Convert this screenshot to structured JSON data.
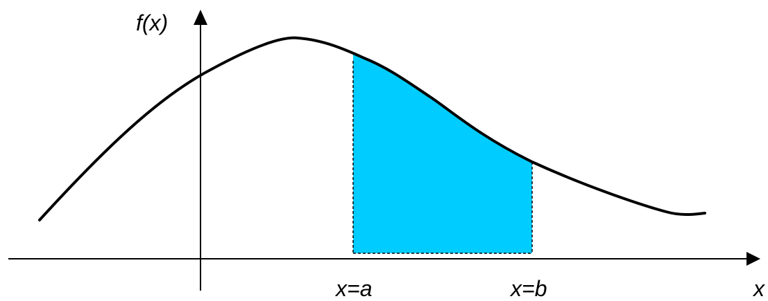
{
  "labels": {
    "y_axis": "f(x)",
    "x_axis": "x",
    "lower_bound": "x=a",
    "upper_bound": "x=b"
  },
  "colors": {
    "background": "#ffffff",
    "curve": "#000000",
    "axes": "#000000",
    "shaded_region": "#00ccff",
    "bound_lines": "#000000"
  },
  "icons": {
    "x_axis_arrow": "arrow-right-icon",
    "y_axis_arrow": "arrow-up-icon"
  }
}
